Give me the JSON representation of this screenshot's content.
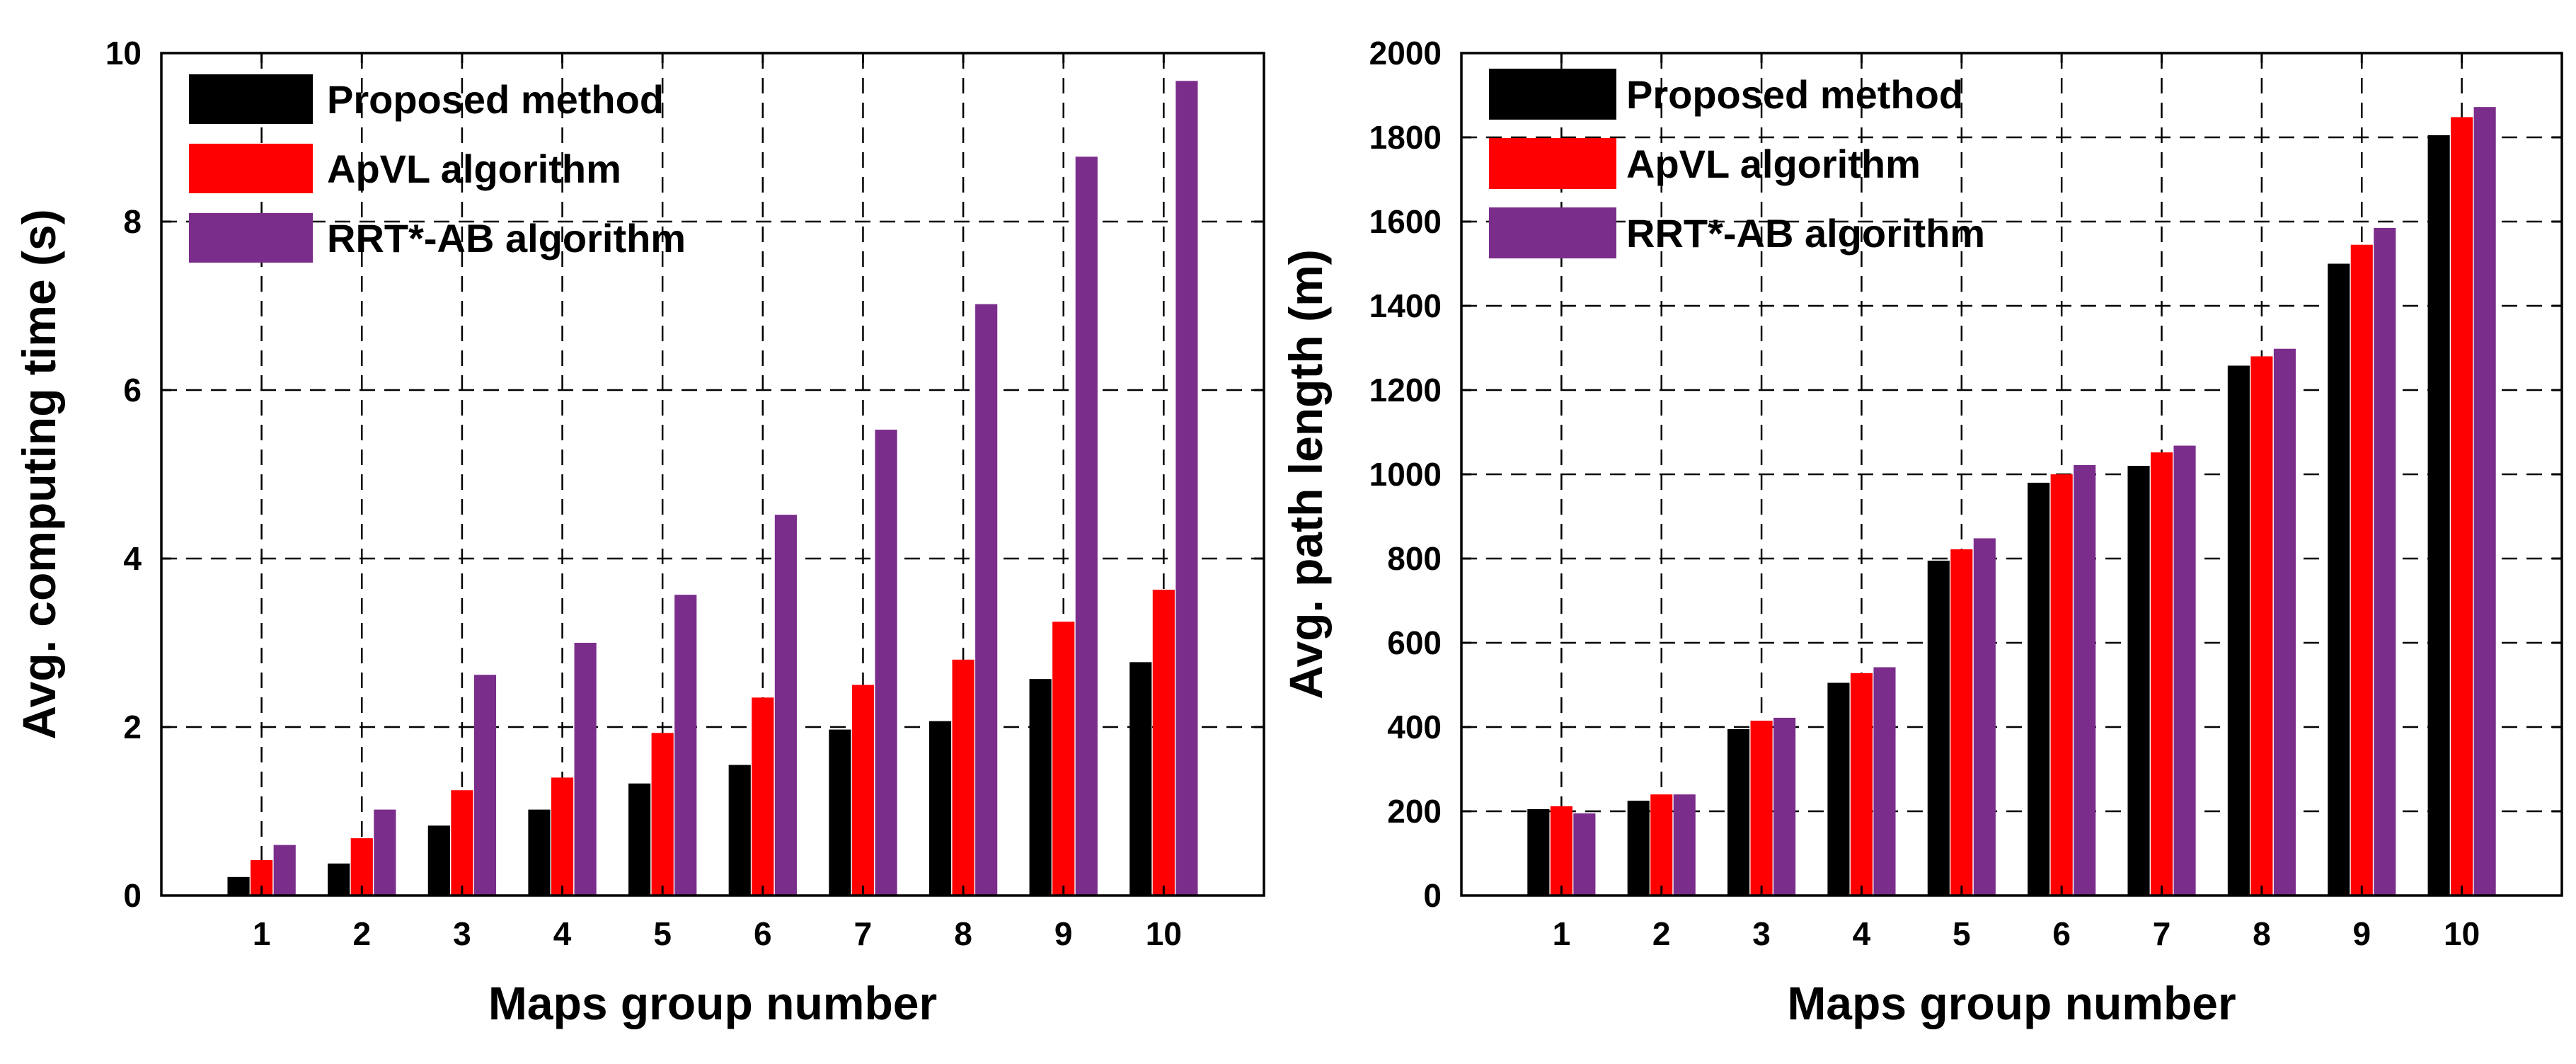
{
  "chart_data": [
    {
      "type": "bar",
      "title": "",
      "xlabel": "Maps group number",
      "ylabel": "Avg. computing time (s)",
      "categories": [
        "1",
        "2",
        "3",
        "4",
        "5",
        "6",
        "7",
        "8",
        "9",
        "10"
      ],
      "ylim": [
        0,
        10
      ],
      "yticks": [
        "0",
        "2",
        "4",
        "6",
        "8",
        "10"
      ],
      "grid": true,
      "legend_position": "top-left",
      "series": [
        {
          "name": "Proposed method",
          "color": "#000000",
          "values": [
            0.22,
            0.38,
            0.83,
            1.02,
            1.33,
            1.55,
            1.97,
            2.07,
            2.57,
            2.77
          ]
        },
        {
          "name": "ApVL algorithm",
          "color": "#ff0000",
          "values": [
            0.42,
            0.68,
            1.25,
            1.4,
            1.93,
            2.35,
            2.5,
            2.8,
            3.25,
            3.63
          ]
        },
        {
          "name": "RRT*-AB algorithm",
          "color": "#7b2d8b",
          "values": [
            0.6,
            1.02,
            2.62,
            3.0,
            3.57,
            4.52,
            5.53,
            7.02,
            8.77,
            9.67
          ]
        }
      ]
    },
    {
      "type": "bar",
      "title": "",
      "xlabel": "Maps group number",
      "ylabel": "Avg. path length (m)",
      "categories": [
        "1",
        "2",
        "3",
        "4",
        "5",
        "6",
        "7",
        "8",
        "9",
        "10"
      ],
      "ylim": [
        0,
        2000
      ],
      "yticks": [
        "0",
        "200",
        "400",
        "600",
        "800",
        "1000",
        "1200",
        "1400",
        "1600",
        "1800",
        "2000"
      ],
      "grid": true,
      "legend_position": "top-left",
      "series": [
        {
          "name": "Proposed method",
          "color": "#000000",
          "values": [
            205,
            225,
            395,
            505,
            795,
            980,
            1020,
            1258,
            1500,
            1805
          ]
        },
        {
          "name": "ApVL algorithm",
          "color": "#ff0000",
          "values": [
            212,
            240,
            415,
            528,
            822,
            1000,
            1052,
            1280,
            1545,
            1848
          ]
        },
        {
          "name": "RRT*-AB algorithm",
          "color": "#7b2d8b",
          "values": [
            195,
            240,
            422,
            542,
            848,
            1022,
            1068,
            1298,
            1585,
            1872
          ]
        }
      ]
    }
  ]
}
